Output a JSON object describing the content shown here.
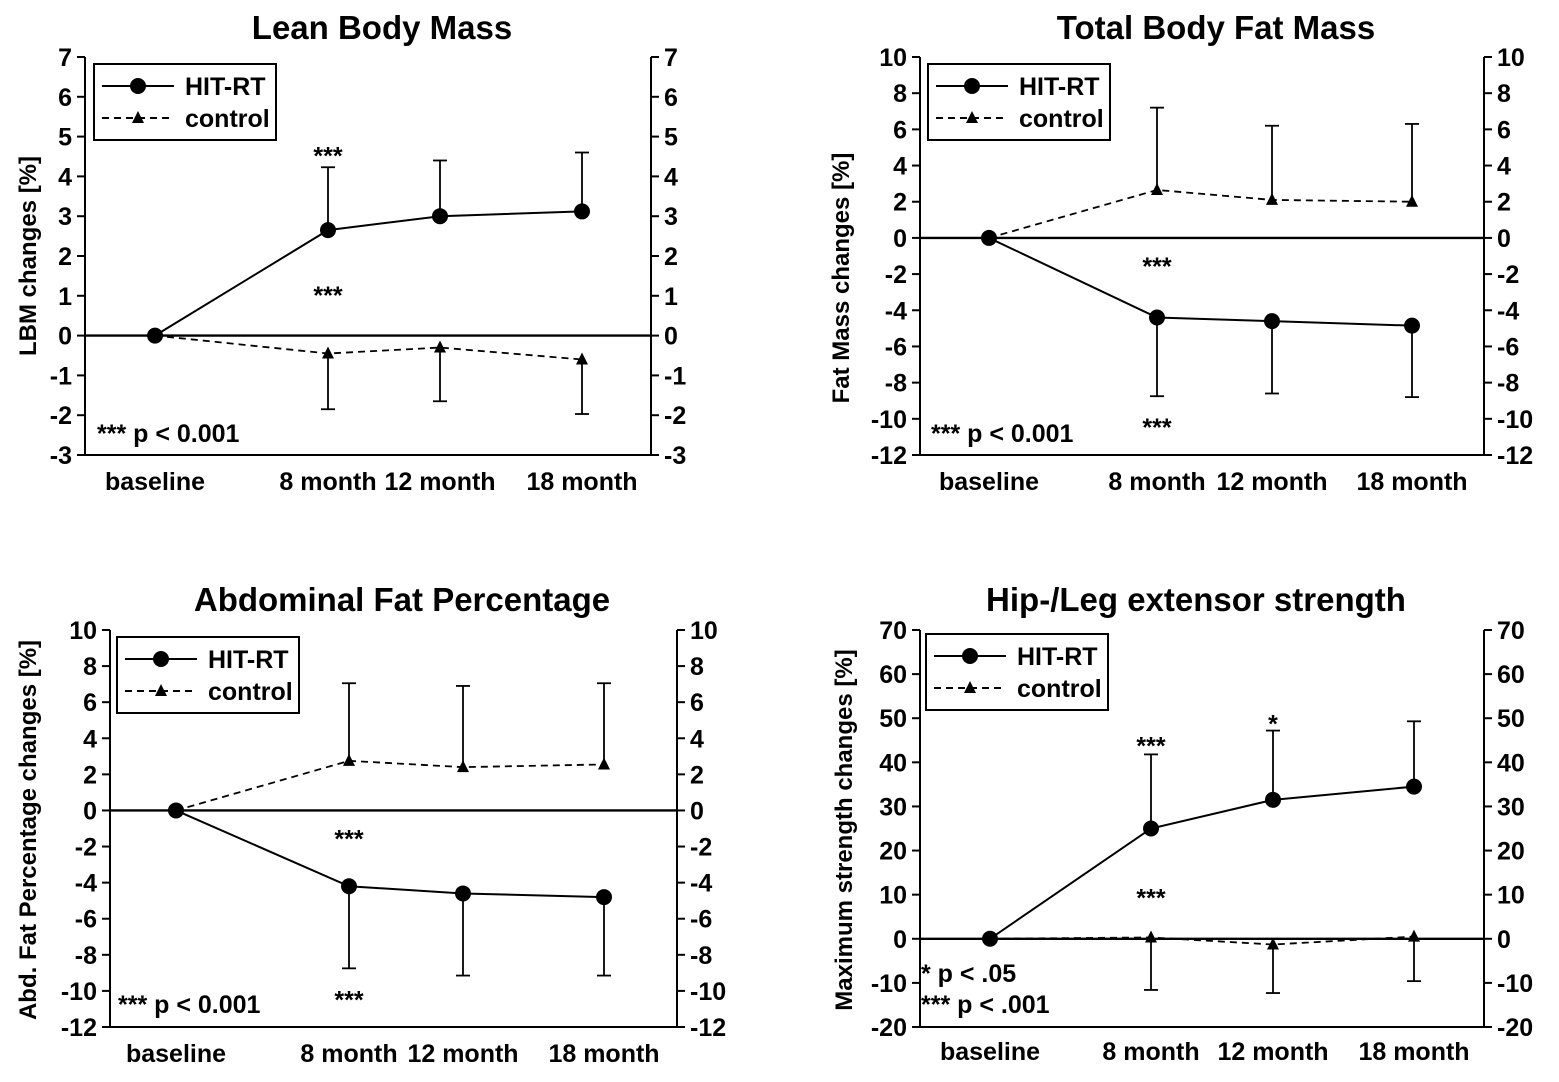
{
  "chart_data": [
    {
      "type": "line",
      "title": "Lean Body Mass",
      "xlabel": "",
      "ylabel": "LBM changes [%]",
      "categories": [
        "baseline",
        "8 month",
        "12 month",
        "18 month"
      ],
      "ylim": [
        -3,
        7
      ],
      "yticks": [
        -3,
        -2,
        -1,
        0,
        1,
        2,
        3,
        4,
        5,
        6,
        7
      ],
      "ytick_labels": [
        "-3",
        "-2",
        "-1",
        "0",
        "1",
        "2",
        "3",
        "4",
        "5",
        "6",
        "7"
      ],
      "series": [
        {
          "name": "HIT-RT",
          "marker": "circle",
          "style": "solid",
          "values": [
            0,
            2.65,
            3.0,
            3.12
          ],
          "error_upper": [
            null,
            4.23,
            4.4,
            4.6
          ],
          "error_lower": [
            null,
            null,
            null,
            null
          ]
        },
        {
          "name": "control",
          "marker": "triangle",
          "style": "dashed",
          "values": [
            0,
            -0.45,
            -0.3,
            -0.6
          ],
          "error_upper": [
            null,
            null,
            null,
            null
          ],
          "error_lower": [
            null,
            -1.85,
            -1.65,
            -1.97
          ]
        }
      ],
      "annotations": [
        {
          "text": "***",
          "x": 1,
          "y": 4.6
        },
        {
          "text": "***",
          "x": 1,
          "y": 1.1
        },
        {
          "text": "*** p < 0.001",
          "position": "bottom-left",
          "line": 0
        }
      ],
      "legend": "top-left"
    },
    {
      "type": "line",
      "title": "Total Body Fat Mass",
      "xlabel": "",
      "ylabel": "Fat Mass changes [%]",
      "categories": [
        "baseline",
        "8 month",
        "12 month",
        "18 month"
      ],
      "ylim": [
        -12,
        10
      ],
      "yticks": [
        -12,
        -10,
        -8,
        -6,
        -4,
        -2,
        0,
        2,
        4,
        6,
        8,
        10
      ],
      "ytick_labels": [
        "-12",
        "-10",
        "-8",
        "-6",
        "-4",
        "-2",
        "0",
        "2",
        "4",
        "6",
        "8",
        "10"
      ],
      "series": [
        {
          "name": "HIT-RT",
          "marker": "circle",
          "style": "solid",
          "values": [
            0,
            -4.4,
            -4.6,
            -4.85
          ],
          "error_upper": [
            null,
            null,
            null,
            null
          ],
          "error_lower": [
            null,
            -8.75,
            -8.6,
            -8.8
          ]
        },
        {
          "name": "control",
          "marker": "triangle",
          "style": "dashed",
          "values": [
            0,
            2.65,
            2.1,
            2.0
          ],
          "error_upper": [
            null,
            7.2,
            6.2,
            6.3
          ],
          "error_lower": [
            null,
            null,
            null,
            null
          ]
        }
      ],
      "annotations": [
        {
          "text": "***",
          "x": 1,
          "y": -1.4
        },
        {
          "text": "***",
          "x": 1,
          "y": -10.3
        },
        {
          "text": "*** p < 0.001",
          "position": "bottom-left",
          "line": 0
        }
      ],
      "legend": "top-left"
    },
    {
      "type": "line",
      "title": "Abdominal Fat Percentage",
      "xlabel": "",
      "ylabel": "Abd. Fat Percentage changes [%]",
      "categories": [
        "baseline",
        "8 month",
        "12 month",
        "18 month"
      ],
      "ylim": [
        -12,
        10
      ],
      "yticks": [
        -12,
        -10,
        -8,
        -6,
        -4,
        -2,
        0,
        2,
        4,
        6,
        8,
        10
      ],
      "ytick_labels": [
        "-12",
        "-10",
        "-8",
        "-6",
        "-4",
        "-2",
        "0",
        "2",
        "4",
        "6",
        "8",
        "10"
      ],
      "series": [
        {
          "name": "HIT-RT",
          "marker": "circle",
          "style": "solid",
          "values": [
            0,
            -4.2,
            -4.6,
            -4.8
          ],
          "error_upper": [
            null,
            null,
            null,
            null
          ],
          "error_lower": [
            null,
            -8.75,
            -9.15,
            -9.15
          ]
        },
        {
          "name": "control",
          "marker": "triangle",
          "style": "dashed",
          "values": [
            0,
            2.75,
            2.4,
            2.55
          ],
          "error_upper": [
            null,
            7.05,
            6.9,
            7.05
          ],
          "error_lower": [
            null,
            null,
            null,
            null
          ]
        }
      ],
      "annotations": [
        {
          "text": "***",
          "x": 1,
          "y": -1.4
        },
        {
          "text": "***",
          "x": 1,
          "y": -10.3
        },
        {
          "text": "*** p < 0.001",
          "position": "bottom-left",
          "line": 0
        }
      ],
      "legend": "top-left"
    },
    {
      "type": "line",
      "title": "Hip-/Leg extensor strength",
      "xlabel": "",
      "ylabel": "Maximum strength changes [%]",
      "categories": [
        "baseline",
        "8 month",
        "12 month",
        "18 month"
      ],
      "ylim": [
        -20,
        70
      ],
      "yticks": [
        -20,
        -10,
        0,
        10,
        20,
        30,
        40,
        50,
        60,
        70
      ],
      "ytick_labels": [
        "-20",
        "-10",
        "0",
        "10",
        "20",
        "30",
        "40",
        "50",
        "60",
        "70"
      ],
      "series": [
        {
          "name": "HIT-RT",
          "marker": "circle",
          "style": "solid",
          "values": [
            0,
            25,
            31.5,
            34.5
          ],
          "error_upper": [
            null,
            41.8,
            47.2,
            49.3
          ],
          "error_lower": [
            null,
            null,
            null,
            null
          ]
        },
        {
          "name": "control",
          "marker": "triangle",
          "style": "dashed",
          "values": [
            0,
            0.3,
            -1.3,
            0.5
          ],
          "error_upper": [
            null,
            null,
            null,
            null
          ],
          "error_lower": [
            null,
            -11.6,
            -12.3,
            -9.6
          ]
        }
      ],
      "annotations": [
        {
          "text": "***",
          "x": 1,
          "y": 44.5
        },
        {
          "text": "*",
          "x": 2,
          "y": 49.5
        },
        {
          "text": "***",
          "x": 1,
          "y": 10
        },
        {
          "text": "* p < .05",
          "position": "bottom-left",
          "line": 0
        },
        {
          "text": "*** p < .001",
          "position": "bottom-left",
          "line": 1
        }
      ],
      "legend": "top-left"
    }
  ]
}
